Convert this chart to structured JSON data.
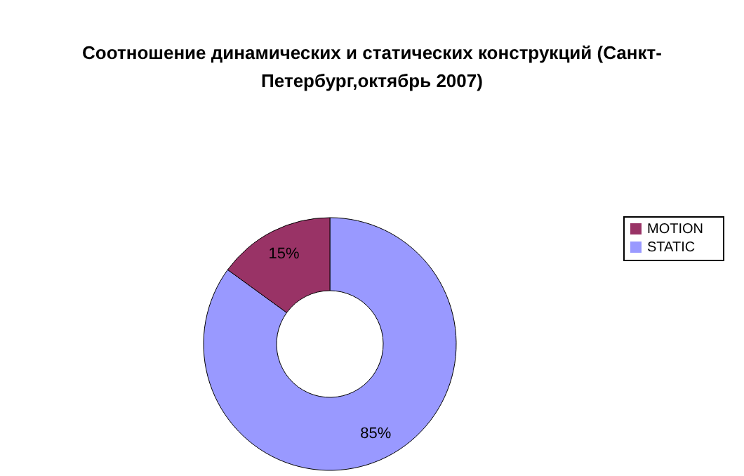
{
  "chart_data": {
    "type": "donut",
    "title": "Соотношение динамических и статических конструкций (Санкт-Петербург,октябрь 2007)",
    "categories": [
      "STATIC",
      "MOTION"
    ],
    "values": [
      85,
      15
    ],
    "colors": [
      "#9999ff",
      "#993366"
    ],
    "value_labels": [
      "85%",
      "15%"
    ],
    "legend": "right"
  }
}
